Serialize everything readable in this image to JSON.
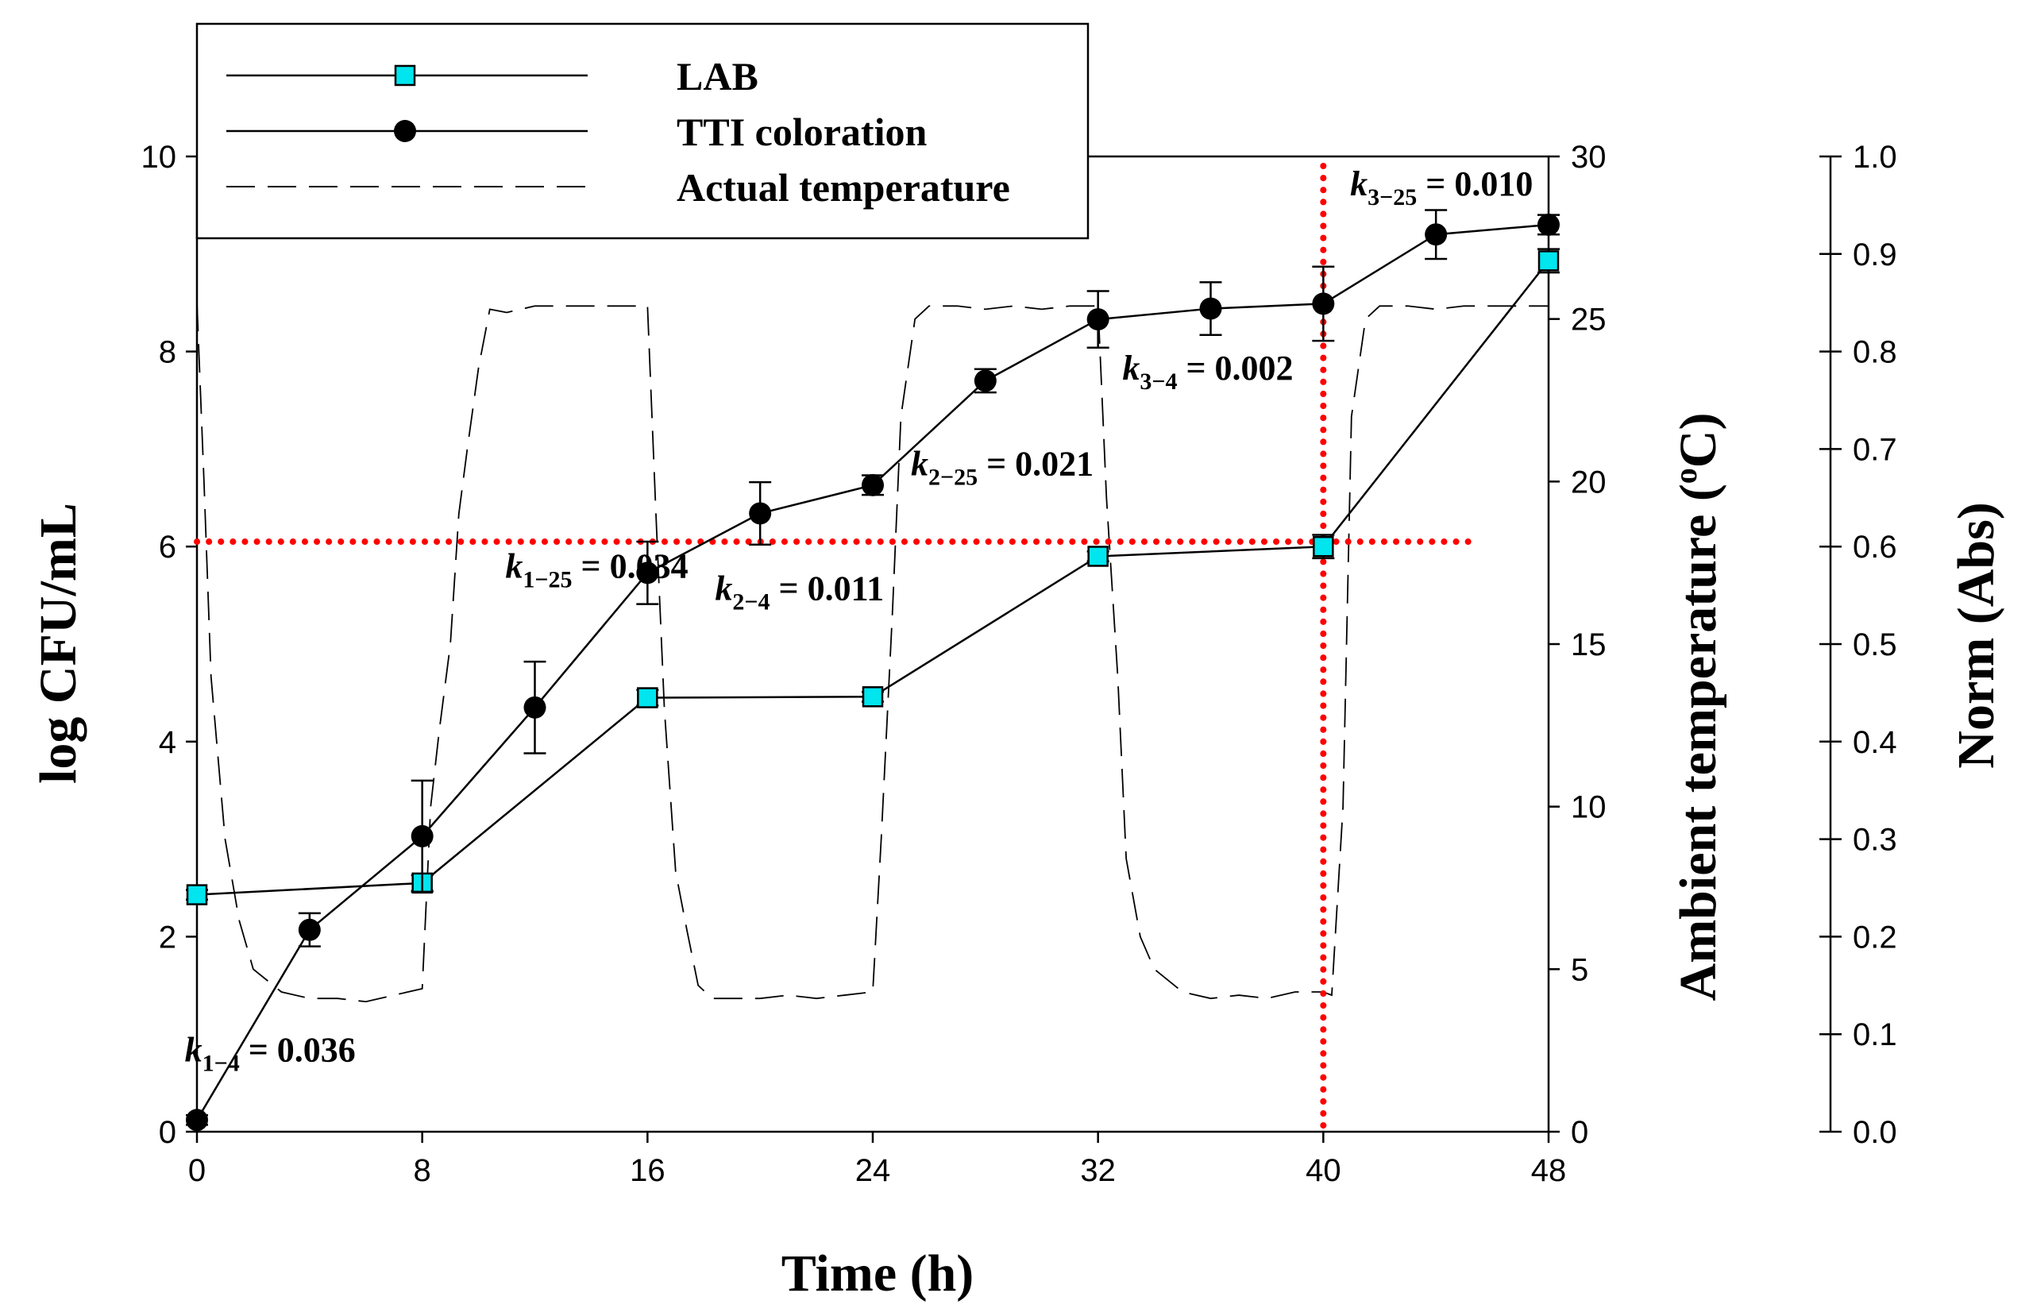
{
  "chart_data": {
    "type": "line",
    "xlabel": "Time (h)",
    "ylabel": "log CFU/mL",
    "y2label": "Ambient temperature",
    "y2label_sup": "o",
    "y2label_unit": "C)",
    "y2label_open": "(",
    "y3label": "Norm (Abs)",
    "xlim": [
      0,
      48
    ],
    "ylim": [
      0,
      10
    ],
    "y2lim": [
      0,
      30
    ],
    "y3lim": [
      0,
      1
    ],
    "xticks": [
      "0",
      "8",
      "16",
      "24",
      "32",
      "40",
      "48"
    ],
    "xtick_values": [
      0,
      8,
      16,
      24,
      32,
      40,
      48
    ],
    "yticks": [
      "0",
      "2",
      "4",
      "6",
      "8",
      "10"
    ],
    "ytick_values": [
      0,
      2,
      4,
      6,
      8,
      10
    ],
    "y2ticks": [
      "0",
      "5",
      "10",
      "15",
      "20",
      "25",
      "30"
    ],
    "y2tick_values": [
      0,
      5,
      10,
      15,
      20,
      25,
      30
    ],
    "y3ticks": [
      "0.0",
      "0.1",
      "0.2",
      "0.3",
      "0.4",
      "0.5",
      "0.6",
      "0.7",
      "0.8",
      "0.9",
      "1.0"
    ],
    "y3tick_values": [
      0,
      0.1,
      0.2,
      0.3,
      0.4,
      0.5,
      0.6,
      0.7,
      0.8,
      0.9,
      1.0
    ],
    "legend": {
      "position": "top-left",
      "entries": [
        "LAB",
        "TTI coloration",
        "Actual temperature"
      ]
    },
    "series": [
      {
        "name": "LAB",
        "axis": "left",
        "marker": "square",
        "color": "#00e5ee",
        "x": [
          0,
          8,
          16,
          24,
          32,
          40,
          48
        ],
        "y": [
          2.43,
          2.55,
          4.45,
          4.46,
          5.9,
          6.0,
          8.93
        ],
        "err": [
          0.05,
          0.08,
          0.08,
          0.05,
          0.05,
          0.12,
          0.12
        ]
      },
      {
        "name": "TTI coloration",
        "axis": "left",
        "marker": "circle",
        "color": "#000000",
        "x": [
          0,
          4,
          8,
          12,
          16,
          20,
          24,
          28,
          32,
          36,
          40,
          44,
          48
        ],
        "y": [
          0.12,
          2.07,
          3.03,
          4.35,
          5.73,
          6.34,
          6.63,
          7.7,
          8.33,
          8.44,
          8.49,
          9.2,
          9.3
        ],
        "err": [
          0.05,
          0.17,
          0.57,
          0.47,
          0.32,
          0.32,
          0.1,
          0.12,
          0.29,
          0.27,
          0.38,
          0.25,
          0.1
        ]
      },
      {
        "name": "Actual temperature",
        "axis": "right",
        "style": "dashed",
        "color": "#000000",
        "x": [
          0,
          0.25,
          0.5,
          1,
          1.5,
          2,
          3,
          4,
          5,
          6,
          7,
          8,
          8.3,
          8.6,
          9,
          9.3,
          9.6,
          10,
          10.4,
          11,
          12,
          14,
          16,
          16.3,
          16.6,
          17,
          17.4,
          17.8,
          18.3,
          19,
          20,
          21,
          22,
          23,
          24,
          24.3,
          24.7,
          25,
          25.5,
          26,
          27,
          28,
          29,
          30,
          31,
          32,
          32.3,
          32.7,
          33,
          33.5,
          34,
          35,
          36,
          37,
          38,
          39,
          40,
          40.3,
          40.7,
          41,
          41.5,
          42,
          43,
          44,
          45,
          46,
          47,
          48
        ],
        "y": [
          25.5,
          20,
          14,
          9,
          6.5,
          5,
          4.3,
          4.1,
          4.1,
          4,
          4.2,
          4.4,
          10,
          12.3,
          15,
          19,
          21,
          23.5,
          25.3,
          25.2,
          25.4,
          25.4,
          25.4,
          19,
          13,
          8,
          6.2,
          4.5,
          4.1,
          4.1,
          4.1,
          4.2,
          4.1,
          4.2,
          4.3,
          9,
          16,
          22,
          25,
          25.4,
          25.4,
          25.3,
          25.4,
          25.3,
          25.4,
          25.4,
          19.5,
          14,
          8.4,
          6,
          5,
          4.3,
          4.1,
          4.2,
          4.1,
          4.3,
          4.3,
          4.2,
          10,
          22,
          25,
          25.4,
          25.4,
          25.3,
          25.4,
          25.4,
          25.4,
          25.4
        ]
      }
    ],
    "reference_lines": [
      {
        "orientation": "horizontal",
        "axis": "left",
        "value": 6.05,
        "color": "#ff0000",
        "style": "dotted"
      },
      {
        "orientation": "vertical",
        "value": 40,
        "color": "#ff0000",
        "style": "dotted"
      }
    ],
    "annotations": [
      {
        "k": "k",
        "sub": "1−4",
        "text": " = 0.036",
        "x": 2.6,
        "y": 0.72
      },
      {
        "k": "k",
        "sub": "1−25",
        "text": " = 0.034",
        "x": 14.2,
        "y": 5.68
      },
      {
        "k": "k",
        "sub": "2−4",
        "text": " = 0.011",
        "x": 21.4,
        "y": 5.45
      },
      {
        "k": "k",
        "sub": "2−25",
        "text": " = 0.021",
        "x": 28.6,
        "y": 6.73
      },
      {
        "k": "k",
        "sub": "3−4",
        "text": " = 0.002",
        "x": 35.9,
        "y": 7.71
      },
      {
        "k": "k",
        "sub": "3−25",
        "text": " = 0.010",
        "x": 44.2,
        "y": 9.6
      }
    ]
  }
}
